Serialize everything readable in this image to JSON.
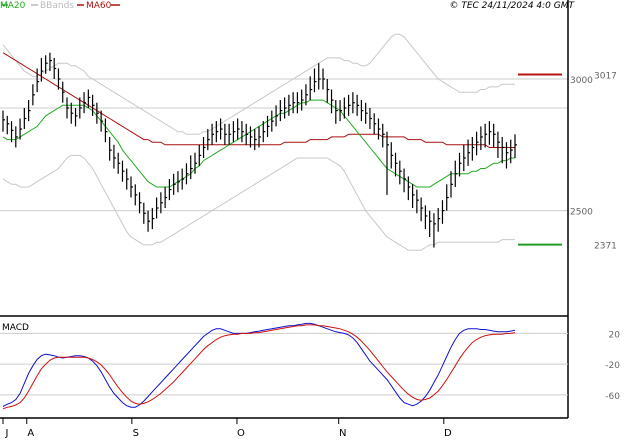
{
  "header": {
    "copyright": "© TEC 24/11/2024 4:0 GMT"
  },
  "legend": [
    {
      "label": "MA20",
      "color": "#22aa22"
    },
    {
      "label": "BBands",
      "color": "#bbbbbb"
    },
    {
      "label": "MA60",
      "color": "#aa1111"
    }
  ],
  "colors": {
    "candle": "#000000",
    "ma20": "#22aa22",
    "ma60": "#aa1111",
    "bbands": "#c8c8c8",
    "macd": "#1111cc",
    "signal": "#cc1111",
    "target_high": "#bb1111",
    "target_low": "#229922",
    "grid": "#cccccc"
  },
  "chart_data": [
    {
      "type": "candlestick",
      "title": "",
      "x": {
        "type": "date",
        "start": "2024-06-24",
        "end": "2024-11-22"
      },
      "ylim": [
        2100,
        3300
      ],
      "y_ticks": [
        2500,
        3000
      ],
      "y_tick_labels": [
        "2500",
        "3000"
      ],
      "grid": "horizontal",
      "months": [
        "J",
        "A",
        "S",
        "O",
        "N",
        "D"
      ],
      "close": [
        2845,
        2830,
        2805,
        2780,
        2810,
        2850,
        2880,
        2940,
        2990,
        3030,
        3060,
        3070,
        3040,
        3000,
        2950,
        2890,
        2870,
        2860,
        2890,
        2910,
        2930,
        2900,
        2870,
        2840,
        2800,
        2730,
        2700,
        2680,
        2650,
        2620,
        2590,
        2560,
        2530,
        2490,
        2460,
        2470,
        2510,
        2530,
        2550,
        2580,
        2600,
        2610,
        2620,
        2640,
        2660,
        2680,
        2710,
        2740,
        2770,
        2790,
        2800,
        2810,
        2790,
        2790,
        2800,
        2810,
        2800,
        2790,
        2780,
        2770,
        2780,
        2800,
        2820,
        2840,
        2860,
        2880,
        2890,
        2900,
        2910,
        2910,
        2920,
        2940,
        2960,
        2990,
        3000,
        3000,
        2960,
        2920,
        2880,
        2880,
        2890,
        2900,
        2910,
        2900,
        2880,
        2870,
        2850,
        2830,
        2810,
        2790,
        2750,
        2710,
        2680,
        2650,
        2620,
        2590,
        2560,
        2540,
        2510,
        2480,
        2460,
        2450,
        2470,
        2500,
        2550,
        2600,
        2640,
        2680,
        2700,
        2720,
        2740,
        2760,
        2780,
        2790,
        2800,
        2790,
        2760,
        2740,
        2720,
        2730,
        2750
      ],
      "high": [
        2880,
        2860,
        2840,
        2820,
        2850,
        2890,
        2920,
        2980,
        3040,
        3080,
        3090,
        3100,
        3080,
        3040,
        2990,
        2930,
        2910,
        2890,
        2930,
        2950,
        2960,
        2940,
        2910,
        2880,
        2850,
        2780,
        2750,
        2720,
        2690,
        2660,
        2630,
        2600,
        2570,
        2530,
        2500,
        2510,
        2550,
        2570,
        2590,
        2620,
        2640,
        2650,
        2660,
        2680,
        2710,
        2720,
        2750,
        2780,
        2810,
        2830,
        2840,
        2850,
        2830,
        2830,
        2840,
        2850,
        2840,
        2830,
        2820,
        2810,
        2820,
        2840,
        2860,
        2880,
        2900,
        2920,
        2930,
        2940,
        2950,
        2950,
        2960,
        2980,
        3010,
        3040,
        3060,
        3040,
        3000,
        2960,
        2920,
        2920,
        2930,
        2940,
        2950,
        2940,
        2920,
        2910,
        2890,
        2870,
        2850,
        2830,
        2800,
        2760,
        2720,
        2690,
        2660,
        2630,
        2600,
        2580,
        2550,
        2520,
        2500,
        2490,
        2510,
        2540,
        2600,
        2650,
        2690,
        2720,
        2750,
        2770,
        2780,
        2800,
        2820,
        2830,
        2840,
        2830,
        2800,
        2780,
        2760,
        2770,
        2790
      ],
      "low": [
        2800,
        2790,
        2760,
        2740,
        2770,
        2810,
        2840,
        2900,
        2950,
        2990,
        3020,
        3030,
        3000,
        2960,
        2910,
        2850,
        2830,
        2820,
        2850,
        2870,
        2890,
        2860,
        2830,
        2800,
        2760,
        2690,
        2660,
        2640,
        2610,
        2580,
        2550,
        2520,
        2490,
        2450,
        2420,
        2430,
        2470,
        2490,
        2510,
        2540,
        2560,
        2570,
        2580,
        2600,
        2620,
        2640,
        2670,
        2700,
        2730,
        2750,
        2760,
        2770,
        2750,
        2750,
        2760,
        2770,
        2760,
        2750,
        2740,
        2730,
        2740,
        2760,
        2780,
        2800,
        2820,
        2840,
        2850,
        2860,
        2870,
        2870,
        2880,
        2900,
        2920,
        2950,
        2960,
        2960,
        2910,
        2870,
        2830,
        2840,
        2850,
        2860,
        2870,
        2860,
        2840,
        2830,
        2810,
        2790,
        2770,
        2740,
        2560,
        2660,
        2630,
        2600,
        2570,
        2540,
        2510,
        2490,
        2460,
        2430,
        2400,
        2360,
        2420,
        2450,
        2500,
        2550,
        2590,
        2630,
        2650,
        2670,
        2690,
        2710,
        2730,
        2740,
        2750,
        2740,
        2700,
        2680,
        2660,
        2680,
        2700
      ],
      "ma20": [
        2780,
        2770,
        2770,
        2770,
        2780,
        2790,
        2800,
        2810,
        2820,
        2840,
        2860,
        2870,
        2880,
        2890,
        2900,
        2900,
        2900,
        2900,
        2900,
        2900,
        2890,
        2880,
        2860,
        2840,
        2820,
        2800,
        2780,
        2760,
        2730,
        2710,
        2690,
        2670,
        2650,
        2630,
        2610,
        2600,
        2590,
        2590,
        2590,
        2590,
        2600,
        2610,
        2620,
        2630,
        2640,
        2660,
        2670,
        2690,
        2700,
        2710,
        2720,
        2730,
        2740,
        2750,
        2760,
        2770,
        2780,
        2790,
        2800,
        2810,
        2820,
        2830,
        2840,
        2850,
        2860,
        2870,
        2870,
        2880,
        2890,
        2900,
        2910,
        2910,
        2920,
        2920,
        2920,
        2920,
        2910,
        2900,
        2890,
        2880,
        2860,
        2840,
        2820,
        2800,
        2780,
        2760,
        2740,
        2720,
        2700,
        2680,
        2660,
        2650,
        2640,
        2630,
        2620,
        2610,
        2600,
        2590,
        2590,
        2590,
        2590,
        2600,
        2610,
        2620,
        2630,
        2640,
        2640,
        2640,
        2640,
        2640,
        2650,
        2650,
        2660,
        2660,
        2670,
        2680,
        2680,
        2690,
        2690,
        2700,
        2700
      ],
      "ma60": [
        3100,
        3090,
        3080,
        3070,
        3060,
        3050,
        3040,
        3030,
        3020,
        3010,
        3000,
        2990,
        2980,
        2970,
        2960,
        2950,
        2940,
        2930,
        2920,
        2910,
        2900,
        2890,
        2880,
        2870,
        2860,
        2850,
        2840,
        2830,
        2820,
        2810,
        2800,
        2790,
        2780,
        2770,
        2770,
        2760,
        2760,
        2760,
        2750,
        2750,
        2750,
        2750,
        2750,
        2750,
        2750,
        2750,
        2750,
        2750,
        2750,
        2750,
        2750,
        2750,
        2750,
        2750,
        2750,
        2750,
        2750,
        2750,
        2750,
        2750,
        2750,
        2750,
        2750,
        2750,
        2750,
        2750,
        2760,
        2760,
        2760,
        2760,
        2760,
        2760,
        2770,
        2770,
        2770,
        2770,
        2770,
        2780,
        2780,
        2780,
        2780,
        2790,
        2790,
        2790,
        2790,
        2790,
        2790,
        2790,
        2790,
        2780,
        2780,
        2780,
        2780,
        2780,
        2780,
        2770,
        2770,
        2770,
        2770,
        2760,
        2760,
        2760,
        2760,
        2760,
        2750,
        2750,
        2750,
        2750,
        2750,
        2750,
        2750,
        2750,
        2750,
        2750,
        2740,
        2740,
        2740,
        2740,
        2740,
        2740,
        2740
      ],
      "bb_upper": [
        3130,
        3110,
        3090,
        3070,
        3050,
        3030,
        3020,
        3010,
        3010,
        3020,
        3030,
        3040,
        3050,
        3060,
        3060,
        3060,
        3050,
        3050,
        3040,
        3030,
        3010,
        3000,
        2990,
        2980,
        2970,
        2960,
        2950,
        2940,
        2930,
        2920,
        2910,
        2900,
        2890,
        2880,
        2870,
        2860,
        2850,
        2840,
        2830,
        2820,
        2810,
        2800,
        2800,
        2790,
        2790,
        2790,
        2790,
        2800,
        2800,
        2810,
        2820,
        2830,
        2840,
        2850,
        2860,
        2870,
        2880,
        2890,
        2900,
        2910,
        2920,
        2930,
        2940,
        2950,
        2960,
        2970,
        2980,
        2990,
        3000,
        3010,
        3020,
        3030,
        3040,
        3050,
        3060,
        3070,
        3080,
        3080,
        3080,
        3080,
        3070,
        3070,
        3060,
        3060,
        3050,
        3050,
        3060,
        3080,
        3100,
        3120,
        3140,
        3160,
        3170,
        3170,
        3160,
        3140,
        3120,
        3100,
        3080,
        3060,
        3040,
        3020,
        3000,
        2990,
        2980,
        2970,
        2960,
        2950,
        2950,
        2950,
        2950,
        2950,
        2960,
        2960,
        2970,
        2970,
        2970,
        2980,
        2980,
        2980,
        2980
      ],
      "bb_lower": [
        2620,
        2610,
        2600,
        2600,
        2590,
        2590,
        2590,
        2600,
        2610,
        2620,
        2630,
        2640,
        2650,
        2660,
        2680,
        2700,
        2710,
        2710,
        2710,
        2700,
        2680,
        2660,
        2630,
        2600,
        2570,
        2540,
        2510,
        2480,
        2450,
        2420,
        2400,
        2390,
        2380,
        2370,
        2370,
        2370,
        2380,
        2380,
        2390,
        2400,
        2410,
        2420,
        2430,
        2440,
        2450,
        2460,
        2470,
        2480,
        2490,
        2500,
        2510,
        2520,
        2530,
        2540,
        2550,
        2560,
        2570,
        2580,
        2590,
        2600,
        2610,
        2620,
        2630,
        2640,
        2650,
        2660,
        2670,
        2680,
        2690,
        2700,
        2700,
        2700,
        2700,
        2700,
        2700,
        2700,
        2700,
        2690,
        2680,
        2670,
        2650,
        2620,
        2590,
        2560,
        2530,
        2500,
        2480,
        2460,
        2440,
        2420,
        2400,
        2390,
        2380,
        2370,
        2360,
        2350,
        2350,
        2350,
        2350,
        2360,
        2370,
        2370,
        2380,
        2380,
        2380,
        2380,
        2380,
        2380,
        2380,
        2380,
        2380,
        2380,
        2380,
        2380,
        2380,
        2380,
        2380,
        2390,
        2390,
        2390,
        2390
      ],
      "targets": [
        {
          "label": "3017",
          "value": 3017,
          "color": "#bb1111"
        },
        {
          "label": "2371",
          "value": 2371,
          "color": "#229922"
        }
      ]
    },
    {
      "type": "line",
      "title": "MACD",
      "ylim": [
        -90,
        40
      ],
      "y_ticks": [
        20,
        -20,
        -60
      ],
      "y_tick_labels": [
        "20",
        "-20",
        "-60"
      ],
      "series": [
        {
          "name": "",
          "color": "#1111cc",
          "values": [
            -75,
            -72,
            -70,
            -66,
            -58,
            -45,
            -32,
            -22,
            -14,
            -9,
            -7,
            -8,
            -9,
            -11,
            -12,
            -11,
            -10,
            -9,
            -9,
            -10,
            -12,
            -16,
            -22,
            -30,
            -40,
            -50,
            -58,
            -64,
            -70,
            -74,
            -76,
            -76,
            -73,
            -68,
            -62,
            -56,
            -50,
            -44,
            -38,
            -32,
            -26,
            -20,
            -14,
            -8,
            -2,
            4,
            10,
            16,
            20,
            24,
            26,
            26,
            24,
            22,
            20,
            20,
            20,
            20,
            21,
            22,
            23,
            24,
            25,
            26,
            27,
            28,
            29,
            30,
            30,
            31,
            32,
            33,
            33,
            32,
            30,
            28,
            26,
            24,
            22,
            21,
            20,
            18,
            14,
            8,
            0,
            -8,
            -16,
            -22,
            -28,
            -34,
            -40,
            -48,
            -56,
            -64,
            -70,
            -72,
            -74,
            -72,
            -68,
            -62,
            -54,
            -44,
            -34,
            -22,
            -10,
            2,
            12,
            20,
            24,
            26,
            26,
            26,
            25,
            25,
            24,
            23,
            22,
            22,
            22,
            23,
            24
          ]
        },
        {
          "name": "",
          "color": "#cc1111",
          "values": [
            -78,
            -76,
            -75,
            -73,
            -70,
            -64,
            -55,
            -45,
            -35,
            -26,
            -20,
            -15,
            -12,
            -11,
            -11,
            -11,
            -11,
            -11,
            -11,
            -11,
            -12,
            -14,
            -17,
            -21,
            -27,
            -34,
            -42,
            -50,
            -57,
            -63,
            -68,
            -71,
            -72,
            -71,
            -69,
            -66,
            -62,
            -58,
            -53,
            -48,
            -43,
            -37,
            -31,
            -25,
            -19,
            -13,
            -7,
            -1,
            4,
            8,
            12,
            15,
            17,
            18,
            19,
            19,
            20,
            20,
            20,
            21,
            21,
            22,
            23,
            24,
            25,
            26,
            27,
            28,
            29,
            30,
            30,
            31,
            31,
            31,
            30,
            30,
            29,
            28,
            27,
            26,
            24,
            22,
            19,
            15,
            10,
            4,
            -2,
            -9,
            -16,
            -23,
            -30,
            -36,
            -42,
            -48,
            -54,
            -59,
            -63,
            -66,
            -67,
            -66,
            -64,
            -60,
            -55,
            -48,
            -40,
            -31,
            -22,
            -13,
            -5,
            2,
            8,
            12,
            15,
            17,
            18,
            19,
            19,
            19,
            20,
            20,
            21
          ]
        }
      ]
    }
  ]
}
